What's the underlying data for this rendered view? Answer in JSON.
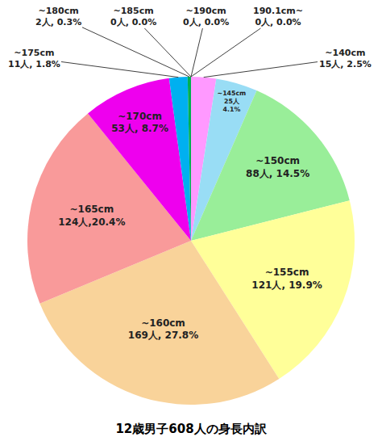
{
  "chart_data": {
    "type": "pie",
    "title": "12歳男子608人の身長内訳",
    "categories": [
      "~140cm",
      "~145cm",
      "~150cm",
      "~155cm",
      "~160cm",
      "~165cm",
      "~170cm",
      "~175cm",
      "~180cm",
      "~185cm",
      "~190cm",
      "190.1cm~"
    ],
    "values": [
      15,
      25,
      88,
      121,
      169,
      124,
      53,
      11,
      2,
      0,
      0,
      0
    ],
    "value_labels": [
      "15人, 2.5%",
      "25人\n4.1%",
      "88人, 14.5%",
      "121人, 19.9%",
      "169人, 27.8%",
      "124人,20.4%",
      "53人, 8.7%",
      "11人, 1.8%",
      "2人, 0.3%",
      "0人, 0.0%",
      "0人, 0.0%",
      "0人, 0.0%"
    ],
    "colors": [
      "#FF99FF",
      "#99DDF5",
      "#99EE99",
      "#FFFF99",
      "#F9D39A",
      "#F99A9A",
      "#EE00EE",
      "#00B0F0",
      "#00B050",
      "#7F7F7F",
      "#7F7F7F",
      "#7F7F7F"
    ],
    "data_labels": true
  }
}
